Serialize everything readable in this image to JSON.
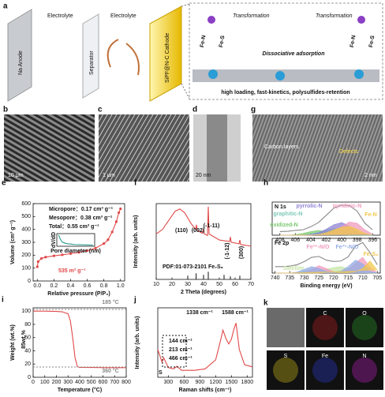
{
  "schematic": {
    "label": "a",
    "layers": [
      "Na Anode",
      "Electrolyte",
      "Separator",
      "Electrolyte",
      "SiPF@N-C Cathode"
    ],
    "transformation": [
      "Transformation",
      "Transformation"
    ],
    "mechanism": "Dissociative adsorption",
    "bonds": [
      "Fe-N",
      "Fe-S",
      "Fe-N",
      "Fe-S"
    ],
    "caption": "high loading, fast-kinetics, polysulfides-retention"
  },
  "micrographs": [
    {
      "label": "b",
      "scale": "10 μm"
    },
    {
      "label": "c",
      "scale": "1 μm"
    },
    {
      "label": "d",
      "scale": "20 nm"
    },
    {
      "label": "g",
      "scale": "2 nm",
      "notes": [
        "Carbon layers",
        "Defects"
      ]
    }
  ],
  "chart_data": [
    {
      "type": "line",
      "label": "e",
      "xlabel": "Relative pressure (P/P₀)",
      "ylabel": "Volume (cm³ g⁻¹)",
      "markers": true,
      "x": [
        0,
        0.01,
        0.05,
        0.1,
        0.2,
        0.3,
        0.4,
        0.5,
        0.6,
        0.7,
        0.8,
        0.85,
        0.9,
        0.95,
        0.98,
        1.0
      ],
      "series": [
        {
          "color": "#e04848",
          "values": [
            110,
            150,
            175,
            185,
            195,
            203,
            212,
            222,
            235,
            255,
            290,
            320,
            380,
            460,
            530,
            560
          ]
        }
      ],
      "xlim": [
        -0.05,
        1.05
      ],
      "ylim": [
        0,
        600
      ],
      "xticks": [
        {
          "value": 0,
          "label": "0.0"
        },
        {
          "value": 0.2,
          "label": "0.2"
        },
        {
          "value": 0.4,
          "label": "0.4"
        },
        {
          "value": 0.6,
          "label": "0.6"
        },
        {
          "value": 0.8,
          "label": "0.8"
        },
        {
          "value": 1,
          "label": "1.0"
        }
      ],
      "yticks": [
        0,
        100,
        200,
        300,
        400,
        500,
        600
      ],
      "annotations": [
        "Micropore：0.17 cm³ g⁻¹",
        "Mesopore：0.38 cm³ g⁻¹",
        "Total：0.55 cm³ g⁻¹",
        "535 m² g⁻¹"
      ]
    },
    {
      "type": "line",
      "xlabel": "Pore diameter (nm)",
      "ylabel": "dV/dD",
      "x": [
        1,
        2,
        3,
        4,
        5,
        6,
        8,
        10,
        15,
        20
      ],
      "series": [
        {
          "color": "#2a9d8f",
          "values": [
            0.08,
            0.05,
            0.03,
            0.025,
            0.02,
            0.018,
            0.015,
            0.012,
            0.01,
            0.008
          ]
        }
      ],
      "xlim": [
        0,
        21
      ],
      "ylim": [
        0,
        0.09
      ]
    },
    {
      "type": "line",
      "label": "f",
      "xlabel": "2 Theta (degrees)",
      "ylabel": "Intensity (arb. units)",
      "x": [
        10,
        14,
        18,
        22,
        25,
        28,
        32,
        35,
        35.5,
        36,
        39,
        40,
        40.5,
        42.5,
        43,
        43.5,
        50,
        56.5,
        57,
        57.5,
        62.5,
        63,
        63.5,
        70
      ],
      "series": [
        {
          "color": "#e04848",
          "values": [
            60,
            66,
            78,
            90,
            93,
            88,
            74,
            66,
            72,
            65,
            61,
            66,
            60,
            58,
            96,
            60,
            52,
            50,
            56,
            49,
            47,
            52,
            46,
            44
          ]
        }
      ],
      "reference": {
        "x": [
          30,
          35.3,
          40,
          43,
          53,
          57,
          63
        ],
        "values": [
          5,
          8,
          6,
          10,
          6,
          4,
          5
        ]
      },
      "xlim": [
        10,
        70
      ],
      "ylim": [
        0,
        100
      ],
      "xticks": [
        10,
        20,
        30,
        40,
        50,
        60,
        70
      ],
      "annotations": [
        "(110)",
        "(002)",
        "(-1-11)",
        "(-1-12)",
        "(300)",
        "PDF:01-073-2101 Fe₇S₈"
      ]
    },
    {
      "type": "area",
      "label": "h",
      "title": "N 1s",
      "x": [
        408,
        407,
        406,
        405,
        404,
        403,
        402,
        401,
        400,
        399,
        398,
        397,
        396
      ],
      "series": [
        {
          "color": "#888888",
          "mode": "line",
          "values": [
            12,
            13,
            16,
            18,
            28,
            42,
            66,
            90,
            100,
            98,
            80,
            40,
            18
          ]
        },
        {
          "name": "oxidized-N",
          "color": "#7bc96f",
          "values": [
            0,
            0,
            2,
            6,
            12,
            16,
            12,
            5,
            1,
            0,
            0,
            0,
            0
          ]
        },
        {
          "name": "graphitic-N",
          "color": "#7fc9b8",
          "values": [
            0,
            0,
            0,
            1,
            4,
            10,
            18,
            22,
            16,
            7,
            2,
            0,
            0
          ]
        },
        {
          "name": "pyrrolic-N",
          "color": "#8f83d3",
          "values": [
            0,
            0,
            0,
            0,
            2,
            8,
            20,
            35,
            42,
            30,
            12,
            3,
            0
          ]
        },
        {
          "name": "pyridinic-N",
          "color": "#f09bbd",
          "values": [
            0,
            0,
            0,
            0,
            0,
            1,
            4,
            12,
            28,
            44,
            40,
            18,
            4
          ]
        },
        {
          "name": "Fe-N",
          "color": "#f2c84b",
          "values": [
            0,
            0,
            0,
            0,
            0,
            2,
            8,
            18,
            26,
            30,
            20,
            6,
            1
          ]
        }
      ],
      "xlim": [
        409,
        395
      ],
      "ylim": [
        0,
        110
      ],
      "xticks": [
        408,
        406,
        404,
        402,
        400,
        398,
        396
      ]
    },
    {
      "type": "area",
      "title": "Fe 2p",
      "xlabel": "Binding energy (eV)",
      "x": [
        740,
        737.5,
        735,
        732.5,
        730,
        727.5,
        725,
        722.5,
        720,
        717.5,
        715,
        712.5,
        710,
        707.5,
        705
      ],
      "series": [
        {
          "color": "#888888",
          "mode": "line",
          "values": [
            14,
            14,
            15,
            18,
            25,
            34,
            36,
            28,
            25,
            26,
            35,
            58,
            66,
            44,
            18
          ]
        },
        {
          "name": "Satellite",
          "color": "#c6e5a6",
          "values": [
            0,
            0,
            0,
            2,
            5,
            8,
            6,
            8,
            12,
            14,
            10,
            4,
            1,
            0,
            0
          ]
        },
        {
          "name": "Fe²⁺-N/O",
          "color": "#f09bbd",
          "values": [
            0,
            0,
            0,
            0,
            2,
            8,
            16,
            10,
            3,
            2,
            8,
            22,
            34,
            12,
            1
          ]
        },
        {
          "name": "Fe³⁺-N/O",
          "color": "#93ade6",
          "values": [
            0,
            0,
            0,
            2,
            8,
            14,
            10,
            4,
            2,
            4,
            14,
            28,
            20,
            4,
            0
          ]
        },
        {
          "name": "Fe₇S₈",
          "color": "#f2c84b",
          "values": [
            0,
            0,
            0,
            0,
            0,
            0,
            0,
            2,
            2,
            1,
            1,
            3,
            10,
            26,
            6
          ]
        }
      ],
      "xlim": [
        741,
        704
      ],
      "ylim": [
        0,
        75
      ],
      "xticks": [
        740,
        735,
        730,
        725,
        720,
        715,
        710,
        705
      ]
    },
    {
      "type": "line",
      "label": "i",
      "xlabel": "Temperature (°C)",
      "ylabel": "Weight (wt.%)",
      "x": [
        0,
        100,
        200,
        250,
        300,
        320,
        340,
        360,
        380,
        400,
        500,
        600,
        700,
        800
      ],
      "series": [
        {
          "color": "#e04848",
          "values": [
            100,
            100,
            99.5,
            99,
            96,
            85,
            60,
            30,
            16,
            15,
            14.8,
            14.6,
            14.5,
            14.5
          ]
        }
      ],
      "xlim": [
        0,
        800
      ],
      "ylim": [
        0,
        105
      ],
      "xticks": [
        0,
        100,
        200,
        300,
        400,
        500,
        600,
        700,
        800
      ],
      "yticks": [
        0,
        20,
        40,
        60,
        80,
        100
      ],
      "annotations": [
        "185 °C",
        "360 °C",
        "85wt.%"
      ]
    },
    {
      "type": "line",
      "label": "j",
      "xlabel": "Raman shifts (cm⁻¹)",
      "ylabel": "Intensity (arb. units)",
      "x": [
        100,
        144,
        180,
        213,
        300,
        400,
        466,
        550,
        800,
        1000,
        1200,
        1300,
        1338,
        1400,
        1450,
        1500,
        1550,
        1588,
        1650,
        1750,
        1900
      ],
      "series": [
        {
          "color": "#e04848",
          "values": [
            40,
            30,
            22,
            28,
            14,
            12,
            16,
            10,
            10,
            12,
            25,
            55,
            68,
            55,
            48,
            55,
            70,
            78,
            40,
            18,
            15
          ]
        }
      ],
      "xlim": [
        100,
        1900
      ],
      "ylim": [
        0,
        100
      ],
      "xticks": [
        300,
        600,
        900,
        1200,
        1500,
        1800
      ],
      "annotations": [
        "1338 cm⁻¹",
        "1588 cm⁻¹",
        "144 cm⁻¹",
        "213 cm⁻¹",
        "466 cm⁻¹",
        "S"
      ]
    }
  ],
  "elemental_maps": {
    "label": "k",
    "elements": [
      "C",
      "O",
      "S",
      "Fe",
      "N"
    ]
  }
}
